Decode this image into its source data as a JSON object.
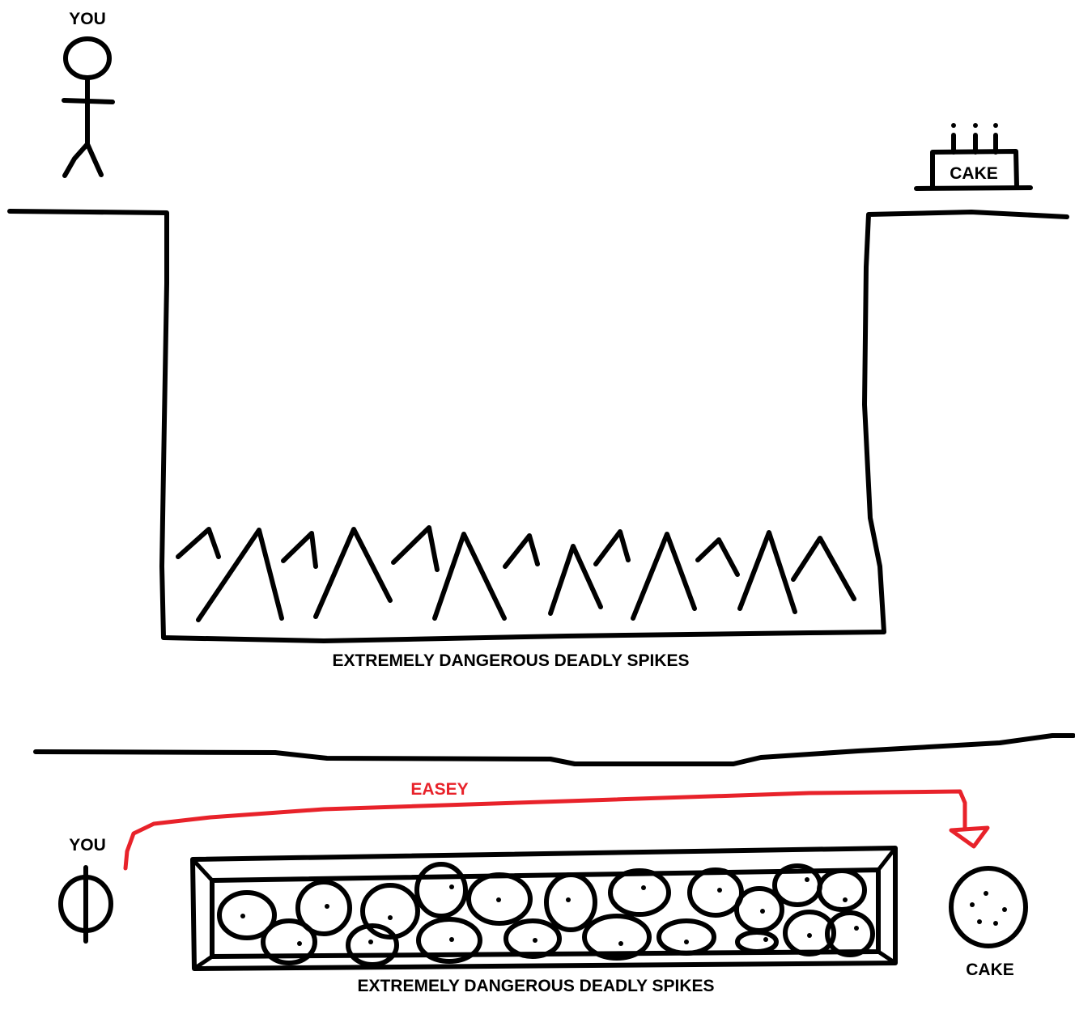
{
  "top_panel": {
    "player_label": "YOU",
    "cake_label": "CAKE",
    "spikes_label": "EXTREMELY DANGEROUS DEADLY SPIKES"
  },
  "bottom_panel": {
    "player_label": "YOU",
    "path_label": "EASEY",
    "cake_label": "CAKE",
    "spikes_label": "EXTREMELY DANGEROUS DEADLY SPIKES"
  },
  "colors": {
    "ink": "#000000",
    "path": "#e8222a",
    "background": "#ffffff"
  }
}
